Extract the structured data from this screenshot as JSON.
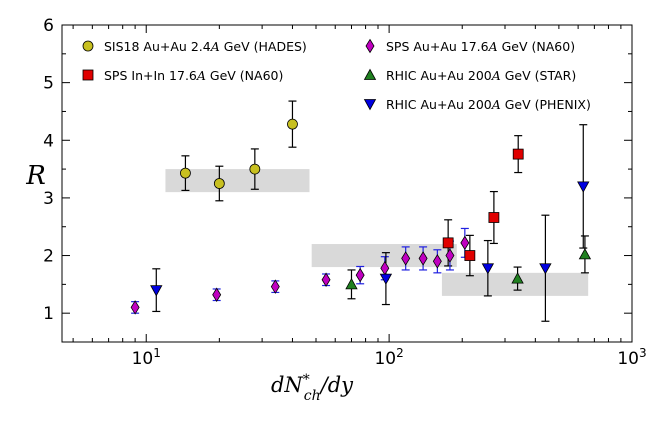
{
  "chart_data": {
    "type": "scatter",
    "title": "",
    "xlabel": {
      "main": "dN",
      "superscript": "*",
      "subscript": "ch",
      "tail": "/dy"
    },
    "ylabel": "R",
    "xscale": "log",
    "xlim": [
      4.5,
      1000
    ],
    "ylim": [
      0.5,
      6
    ],
    "grid": false,
    "legend_position": "top",
    "x_ticks": [
      {
        "value": 10,
        "base": "10",
        "exp": "1"
      },
      {
        "value": 100,
        "base": "10",
        "exp": "2"
      },
      {
        "value": 1000,
        "base": "10",
        "exp": "3"
      }
    ],
    "y_ticks": [
      {
        "value": 1,
        "label": "1"
      },
      {
        "value": 2,
        "label": "2"
      },
      {
        "value": 3,
        "label": "3"
      },
      {
        "value": 4,
        "label": "4"
      },
      {
        "value": 5,
        "label": "5"
      },
      {
        "value": 6,
        "label": "6"
      }
    ],
    "bands": [
      {
        "name": "sis18-band",
        "x": [
          12,
          47
        ],
        "y": [
          3.1,
          3.5
        ],
        "color": "#d9d9d9"
      },
      {
        "name": "sps-band",
        "x": [
          48,
          190
        ],
        "y": [
          1.8,
          2.2
        ],
        "color": "#d9d9d9"
      },
      {
        "name": "rhic-band",
        "x": [
          165,
          660
        ],
        "y": [
          1.3,
          1.7
        ],
        "color": "#d9d9d9"
      }
    ],
    "series": [
      {
        "name": "SIS18 Au+Au 2.4",
        "unit": "A",
        "energy": "GeV (HADES)",
        "marker": "circle",
        "color": "#c8c020",
        "error_color": "#000000",
        "points": [
          {
            "x": 14.5,
            "y": 3.43,
            "err": 0.3
          },
          {
            "x": 20,
            "y": 3.25,
            "err": 0.3
          },
          {
            "x": 28,
            "y": 3.5,
            "err": 0.35
          },
          {
            "x": 40,
            "y": 4.28,
            "err": 0.4
          }
        ]
      },
      {
        "name": "SPS In+In 17.6",
        "unit": "A",
        "energy": "GeV (NA60)",
        "marker": "square",
        "color": "#e00000",
        "error_color": "#000000",
        "points": [
          {
            "x": 175,
            "y": 2.22,
            "err": 0.4
          },
          {
            "x": 215,
            "y": 2.0,
            "err": 0.35
          },
          {
            "x": 270,
            "y": 2.66,
            "err": 0.45
          },
          {
            "x": 340,
            "y": 3.76,
            "err": 0.32
          }
        ]
      },
      {
        "name": "SPS Au+Au 17.6",
        "unit": "A",
        "energy": "GeV (NA60)",
        "marker": "diamond",
        "color": "#c000c0",
        "error_color": "#2020e0",
        "points": [
          {
            "x": 9,
            "y": 1.1,
            "err": 0.1
          },
          {
            "x": 19.5,
            "y": 1.32,
            "err": 0.1
          },
          {
            "x": 34,
            "y": 1.46,
            "err": 0.1
          },
          {
            "x": 55,
            "y": 1.58,
            "err": 0.1
          },
          {
            "x": 76,
            "y": 1.66,
            "err": 0.15
          },
          {
            "x": 96,
            "y": 1.78,
            "err": 0.2
          },
          {
            "x": 117,
            "y": 1.95,
            "err": 0.2
          },
          {
            "x": 138,
            "y": 1.95,
            "err": 0.2
          },
          {
            "x": 158,
            "y": 1.9,
            "err": 0.2
          },
          {
            "x": 178,
            "y": 2.0,
            "err": 0.25
          },
          {
            "x": 205,
            "y": 2.22,
            "err": 0.25
          }
        ]
      },
      {
        "name": "RHIC Au+Au 200",
        "unit": "A",
        "energy": "GeV (STAR)",
        "marker": "triangle-up",
        "color": "#208020",
        "error_color": "#000000",
        "points": [
          {
            "x": 70,
            "y": 1.5,
            "err": 0.25
          },
          {
            "x": 338,
            "y": 1.6,
            "err": 0.2
          },
          {
            "x": 640,
            "y": 2.02,
            "err": 0.32
          }
        ]
      },
      {
        "name": "RHIC Au+Au 200",
        "unit": "A",
        "energy": "GeV (PHENIX)",
        "marker": "triangle-down",
        "color": "#0000e0",
        "error_color": "#000000",
        "points": [
          {
            "x": 11,
            "y": 1.4,
            "err": 0.37
          },
          {
            "x": 97,
            "y": 1.6,
            "err": 0.45
          },
          {
            "x": 255,
            "y": 1.78,
            "err": 0.48
          },
          {
            "x": 440,
            "y": 1.78,
            "err": 0.92
          },
          {
            "x": 630,
            "y": 3.2,
            "err": 1.07
          }
        ]
      }
    ]
  }
}
